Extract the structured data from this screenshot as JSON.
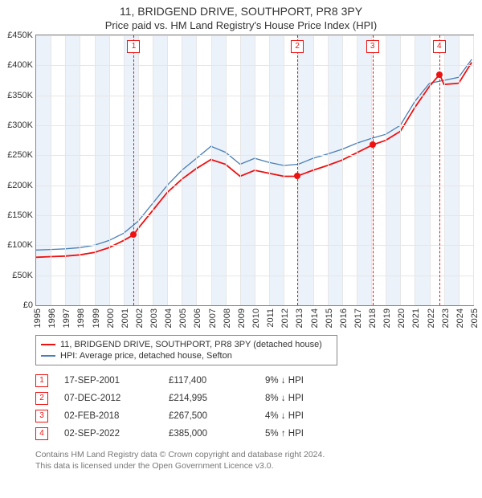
{
  "title": "11, BRIDGEND DRIVE, SOUTHPORT, PR8 3PY",
  "subtitle": "Price paid vs. HM Land Registry's House Price Index (HPI)",
  "chart": {
    "type": "line",
    "ylim": [
      0,
      450000
    ],
    "ytick_step": 50000,
    "ylabels": [
      "£0",
      "£50K",
      "£100K",
      "£150K",
      "£200K",
      "£250K",
      "£300K",
      "£350K",
      "£400K",
      "£450K"
    ],
    "xlim": [
      1995,
      2025
    ],
    "xlabels": [
      "1995",
      "1996",
      "1997",
      "1998",
      "1999",
      "2000",
      "2001",
      "2002",
      "2003",
      "2004",
      "2005",
      "2006",
      "2007",
      "2008",
      "2009",
      "2010",
      "2011",
      "2012",
      "2013",
      "2014",
      "2015",
      "2016",
      "2017",
      "2018",
      "2019",
      "2020",
      "2021",
      "2022",
      "2023",
      "2024",
      "2025"
    ],
    "shaded_years": [
      1995,
      1997,
      1999,
      2001,
      2003,
      2005,
      2007,
      2009,
      2011,
      2013,
      2015,
      2017,
      2019,
      2021,
      2023
    ],
    "background_color": "#ffffff",
    "grid_color": "#e6e6e6",
    "shade_color": "#eaf1fa",
    "series": [
      {
        "name": "hpi",
        "label": "HPI: Average price, detached house, Sefton",
        "color": "#4a7fb5",
        "line_width": 1.3,
        "points": [
          [
            1995,
            92000
          ],
          [
            1996,
            93000
          ],
          [
            1997,
            94000
          ],
          [
            1998,
            96000
          ],
          [
            1999,
            100000
          ],
          [
            2000,
            108000
          ],
          [
            2001,
            120000
          ],
          [
            2002,
            140000
          ],
          [
            2003,
            170000
          ],
          [
            2004,
            200000
          ],
          [
            2005,
            225000
          ],
          [
            2006,
            245000
          ],
          [
            2007,
            265000
          ],
          [
            2008,
            255000
          ],
          [
            2009,
            235000
          ],
          [
            2010,
            245000
          ],
          [
            2011,
            238000
          ],
          [
            2012,
            233000
          ],
          [
            2013,
            235000
          ],
          [
            2014,
            245000
          ],
          [
            2015,
            252000
          ],
          [
            2016,
            260000
          ],
          [
            2017,
            270000
          ],
          [
            2018,
            278000
          ],
          [
            2019,
            285000
          ],
          [
            2020,
            300000
          ],
          [
            2021,
            340000
          ],
          [
            2022,
            370000
          ],
          [
            2023,
            375000
          ],
          [
            2024,
            380000
          ],
          [
            2024.9,
            410000
          ]
        ]
      },
      {
        "name": "price_paid",
        "label": "11, BRIDGEND DRIVE, SOUTHPORT, PR8 3PY (detached house)",
        "color": "#e11",
        "line_width": 1.8,
        "points": [
          [
            1995,
            80000
          ],
          [
            1996,
            81000
          ],
          [
            1997,
            82000
          ],
          [
            1998,
            84000
          ],
          [
            1999,
            88000
          ],
          [
            2000,
            96000
          ],
          [
            2001,
            108000
          ],
          [
            2001.7,
            117400
          ],
          [
            2002,
            128000
          ],
          [
            2003,
            158000
          ],
          [
            2004,
            188000
          ],
          [
            2005,
            210000
          ],
          [
            2006,
            228000
          ],
          [
            2007,
            243000
          ],
          [
            2008,
            235000
          ],
          [
            2009,
            215000
          ],
          [
            2010,
            225000
          ],
          [
            2011,
            220000
          ],
          [
            2012,
            215000
          ],
          [
            2012.9,
            214995
          ],
          [
            2013,
            216000
          ],
          [
            2014,
            225000
          ],
          [
            2015,
            233000
          ],
          [
            2016,
            242000
          ],
          [
            2017,
            254000
          ],
          [
            2018.1,
            267500
          ],
          [
            2019,
            275000
          ],
          [
            2020,
            290000
          ],
          [
            2021,
            330000
          ],
          [
            2022,
            365000
          ],
          [
            2022.7,
            385000
          ],
          [
            2023,
            368000
          ],
          [
            2024,
            370000
          ],
          [
            2024.9,
            405000
          ]
        ]
      }
    ],
    "events": [
      {
        "n": "1",
        "year": 2001.7,
        "price": 117400,
        "date": "17-SEP-2001",
        "price_label": "£117,400",
        "pct": "9% ↓ HPI"
      },
      {
        "n": "2",
        "year": 2012.93,
        "price": 214995,
        "date": "07-DEC-2012",
        "price_label": "£214,995",
        "pct": "8% ↓ HPI"
      },
      {
        "n": "3",
        "year": 2018.09,
        "price": 267500,
        "date": "02-FEB-2018",
        "price_label": "£267,500",
        "pct": "4% ↓ HPI"
      },
      {
        "n": "4",
        "year": 2022.67,
        "price": 385000,
        "date": "02-SEP-2022",
        "price_label": "£385,000",
        "pct": "5% ↑ HPI"
      }
    ]
  },
  "legend": {
    "items": [
      {
        "color": "#e11",
        "label": "11, BRIDGEND DRIVE, SOUTHPORT, PR8 3PY (detached house)"
      },
      {
        "color": "#4a7fb5",
        "label": "HPI: Average price, detached house, Sefton"
      }
    ]
  },
  "footer_line1": "Contains HM Land Registry data © Crown copyright and database right 2024.",
  "footer_line2": "This data is licensed under the Open Government Licence v3.0."
}
